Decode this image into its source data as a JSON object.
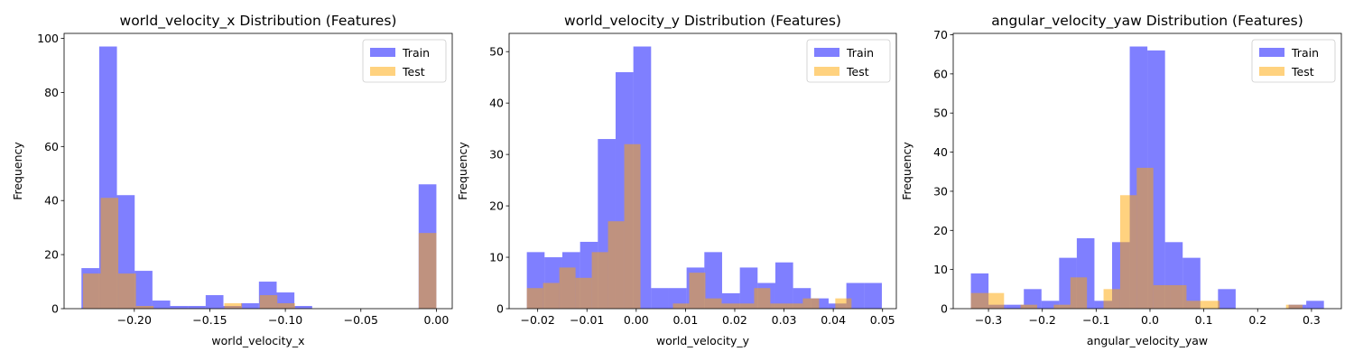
{
  "colors": {
    "train": "#0000ff",
    "test": "#ffa500"
  },
  "chart_data": [
    {
      "type": "histogram",
      "title": "world_velocity_x Distribution (Features)",
      "xlabel": "world_velocity_x",
      "ylabel": "Frequency",
      "xlim": [
        -0.2465,
        0.0105
      ],
      "ylim": [
        0,
        101.85
      ],
      "xticks": [
        -0.2,
        -0.15,
        -0.1,
        -0.05,
        0.0
      ],
      "xtick_labels": [
        "−0.20",
        "−0.15",
        "−0.10",
        "−0.05",
        "0.00"
      ],
      "yticks": [
        0,
        20,
        40,
        60,
        80,
        100
      ],
      "legend": {
        "position": "upper-right",
        "entries": [
          "Train",
          "Test"
        ]
      },
      "series": [
        {
          "name": "Train",
          "alpha": 0.5,
          "bin_start": -0.235,
          "bin_width": 0.01175,
          "values": [
            15,
            97,
            42,
            14,
            3,
            1,
            1,
            5,
            1,
            2,
            10,
            6,
            1,
            0,
            0,
            0,
            0,
            0,
            0,
            46
          ]
        },
        {
          "name": "Test",
          "alpha": 0.5,
          "bin_start": -0.234,
          "bin_width": 0.0117,
          "values": [
            13,
            41,
            13,
            1,
            0,
            0,
            0,
            0,
            2,
            0,
            5,
            2,
            0,
            0,
            0,
            0,
            0,
            0,
            0,
            28
          ]
        }
      ]
    },
    {
      "type": "histogram",
      "title": "world_velocity_y Distribution (Features)",
      "xlabel": "world_velocity_y",
      "ylabel": "Frequency",
      "xlim": [
        -0.0258,
        0.0528
      ],
      "ylim": [
        0,
        53.55
      ],
      "xticks": [
        -0.02,
        -0.01,
        0.0,
        0.01,
        0.02,
        0.03,
        0.04,
        0.05
      ],
      "xtick_labels": [
        "−0.02",
        "−0.01",
        "0.00",
        "0.01",
        "0.02",
        "0.03",
        "0.04",
        "0.05"
      ],
      "yticks": [
        0,
        10,
        20,
        30,
        40,
        50
      ],
      "legend": {
        "position": "upper-right",
        "entries": [
          "Train",
          "Test"
        ]
      },
      "series": [
        {
          "name": "Train",
          "alpha": 0.5,
          "bin_start": -0.0222,
          "bin_width": 0.003603,
          "values": [
            11,
            10,
            11,
            13,
            33,
            46,
            51,
            4,
            4,
            8,
            11,
            3,
            8,
            5,
            9,
            4,
            2,
            1,
            5,
            5
          ]
        },
        {
          "name": "Test",
          "alpha": 0.5,
          "bin_start": -0.0222,
          "bin_width": 0.003295,
          "values": [
            4,
            5,
            8,
            6,
            11,
            17,
            32,
            0,
            0,
            1,
            7,
            2,
            1,
            1,
            4,
            1,
            1,
            2,
            0,
            2
          ]
        }
      ]
    },
    {
      "type": "histogram",
      "title": "angular_velocity_yaw Distribution (Features)",
      "xlabel": "angular_velocity_yaw",
      "ylabel": "Frequency",
      "xlim": [
        -0.3655,
        0.3555
      ],
      "ylim": [
        0,
        70.35
      ],
      "xticks": [
        -0.3,
        -0.2,
        -0.1,
        0.0,
        0.1,
        0.2,
        0.3
      ],
      "xtick_labels": [
        "−0.3",
        "−0.2",
        "−0.1",
        "0.0",
        "0.1",
        "0.2",
        "0.3"
      ],
      "yticks": [
        0,
        10,
        20,
        30,
        40,
        50,
        60,
        70
      ],
      "legend": {
        "position": "upper-right",
        "entries": [
          "Train",
          "Test"
        ]
      },
      "series": [
        {
          "name": "Train",
          "alpha": 0.5,
          "bin_start": -0.3327,
          "bin_width": 0.03279,
          "values": [
            9,
            1,
            1,
            5,
            2,
            13,
            18,
            2,
            17,
            67,
            66,
            17,
            13,
            0,
            5,
            0,
            0,
            0,
            1,
            2
          ]
        },
        {
          "name": "Test",
          "alpha": 0.5,
          "bin_start": -0.3327,
          "bin_width": 0.03081,
          "values": [
            4,
            4,
            0,
            1,
            0,
            1,
            8,
            0,
            5,
            29,
            36,
            6,
            6,
            2,
            2,
            0,
            0,
            0,
            0,
            1
          ]
        }
      ]
    }
  ]
}
